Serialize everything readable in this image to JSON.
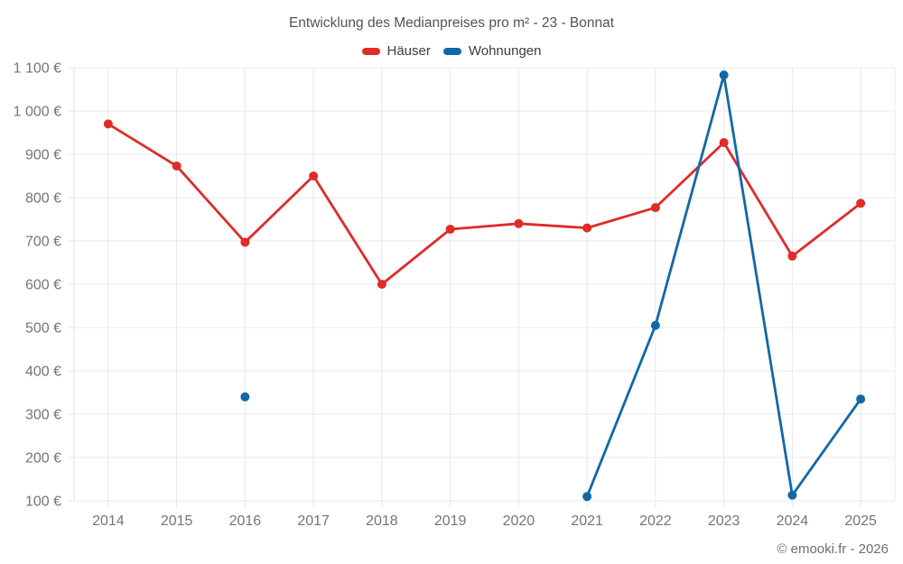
{
  "chart_data": {
    "type": "line",
    "title": "Entwicklung des Medianpreises pro m² - 23 - Bonnat",
    "categories": [
      "2014",
      "2015",
      "2016",
      "2017",
      "2018",
      "2019",
      "2020",
      "2021",
      "2022",
      "2023",
      "2024",
      "2025"
    ],
    "series": [
      {
        "name": "Häuser",
        "color": "#e02b28",
        "values": [
          970,
          873,
          697,
          850,
          600,
          727,
          740,
          730,
          777,
          927,
          665,
          787
        ]
      },
      {
        "name": "Wohnungen",
        "color": "#1168a8",
        "values": [
          null,
          null,
          340,
          null,
          null,
          null,
          null,
          110,
          505,
          1083,
          113,
          335
        ]
      }
    ],
    "y_axis": {
      "min": 100,
      "max": 1100,
      "step": 100,
      "suffix": "€"
    },
    "grid": true,
    "legend_position": "top",
    "footer": "© emooki.fr - 2026"
  }
}
